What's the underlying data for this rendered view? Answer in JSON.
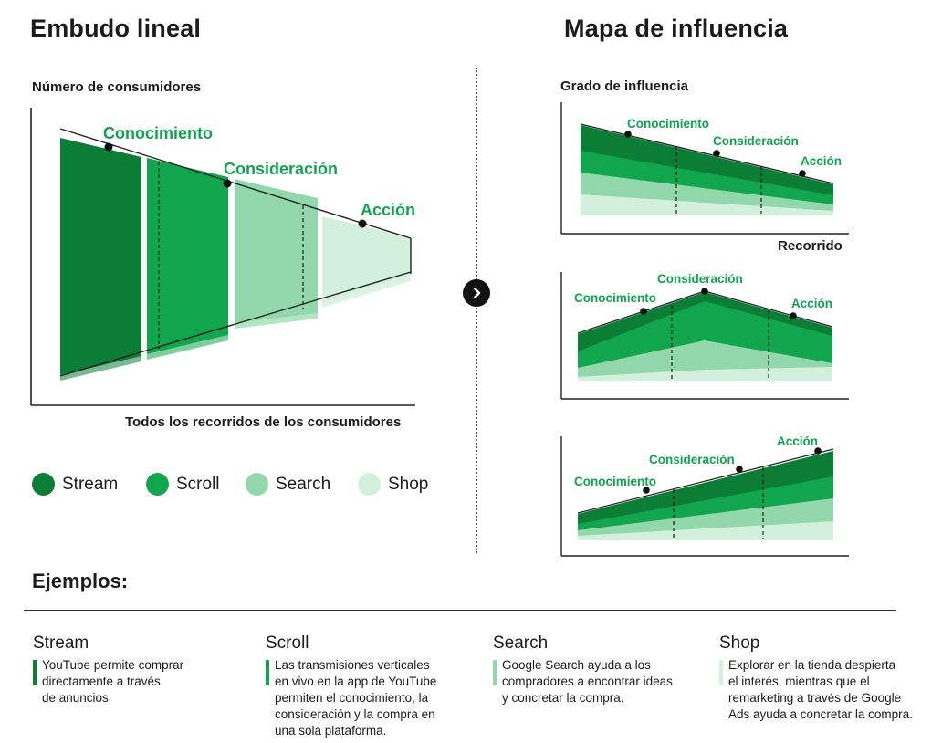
{
  "colors": {
    "stream": "#0b7d34",
    "scroll": "#11a64d",
    "search": "#92d8ac",
    "shop": "#d2f0dc",
    "accent_text": "#13a152",
    "dark": "#1b1b1b"
  },
  "left": {
    "title": "Embudo lineal",
    "y_axis_label": "Número de consumidores",
    "x_axis_label": "Todos los recorridos de los consumidores",
    "stages": [
      "Conocimiento",
      "Consideración",
      "Acción"
    ]
  },
  "right": {
    "title": "Mapa de influencia",
    "y_axis_label": "Grado de influencia",
    "x_axis_label": "Recorrido",
    "chart1_stages": [
      "Conocimiento",
      "Consideración",
      "Acción"
    ],
    "chart2_stages": [
      "Conocimiento",
      "Consideración",
      "Acción"
    ],
    "chart3_stages": [
      "Conocimiento",
      "Consideración",
      "Acción"
    ]
  },
  "legend": [
    {
      "label": "Stream",
      "icon": "stream-dot"
    },
    {
      "label": "Scroll",
      "icon": "scroll-dot"
    },
    {
      "label": "Search",
      "icon": "search-dot"
    },
    {
      "label": "Shop",
      "icon": "shop-dot"
    }
  ],
  "next_button_icon": "chevron-right-icon",
  "examples": {
    "title": "Ejemplos:",
    "items": [
      {
        "title": "Stream",
        "lines": [
          "YouTube permite comprar",
          "directamente a través",
          "de anuncios"
        ]
      },
      {
        "title": "Scroll",
        "lines": [
          "Las transmisiones verticales",
          "en vivo en la app de YouTube",
          "permiten el conocimiento, la",
          "consideración y la compra en",
          "una sola plataforma."
        ]
      },
      {
        "title": "Search",
        "lines": [
          "Google Search ayuda a los",
          "compradores a encontrar ideas",
          "y concretar la compra."
        ]
      },
      {
        "title": "Shop",
        "lines": [
          "Explorar en la tienda despierta",
          "el interés, mientras que el",
          "remarketing a través de Google",
          "Ads ayuda a concretar la compra."
        ]
      }
    ]
  }
}
